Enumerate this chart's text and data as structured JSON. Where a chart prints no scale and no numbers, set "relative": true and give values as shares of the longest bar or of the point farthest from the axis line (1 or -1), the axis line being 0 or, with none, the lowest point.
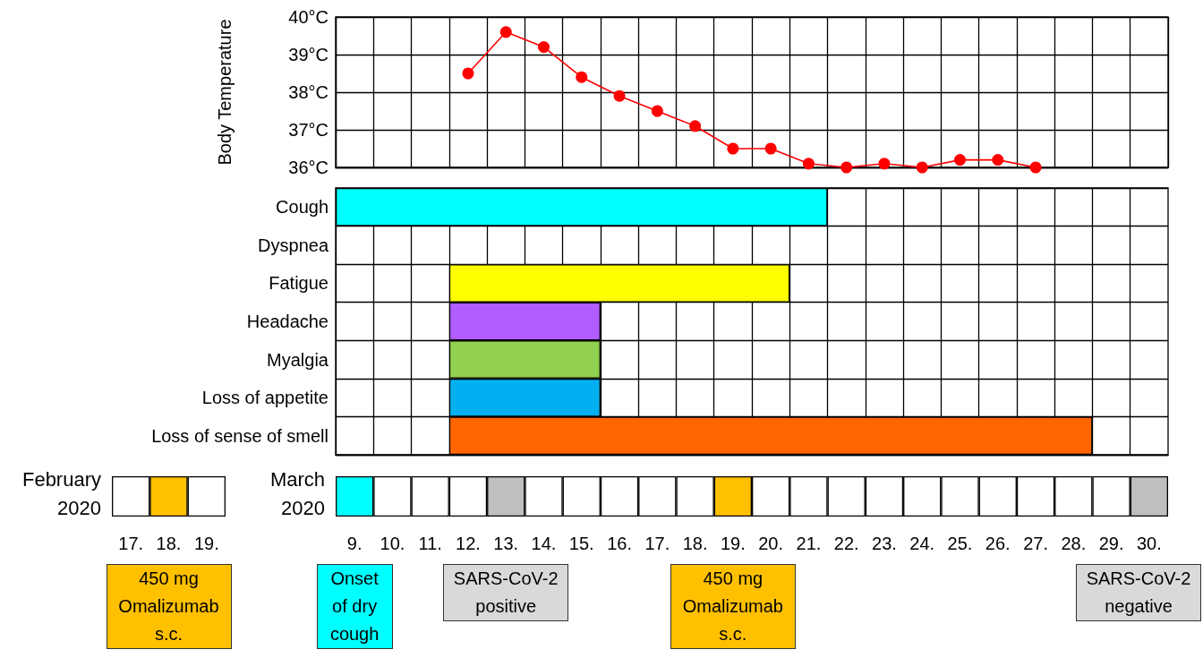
{
  "chart_data": [
    {
      "type": "line",
      "ylabel": "Body Temperature",
      "categories": [
        "9.",
        "10.",
        "11.",
        "12.",
        "13.",
        "14.",
        "15.",
        "16.",
        "17.",
        "18.",
        "19.",
        "20.",
        "21.",
        "22.",
        "23.",
        "24.",
        "25.",
        "26.",
        "27.",
        "28.",
        "29.",
        "30."
      ],
      "series": [
        {
          "color": "#ff0000",
          "values": [
            null,
            null,
            null,
            38.5,
            39.6,
            39.2,
            38.4,
            37.9,
            37.5,
            37.1,
            36.5,
            36.5,
            36.1,
            36.0,
            36.1,
            36.0,
            36.2,
            36.2,
            36.0,
            null,
            null,
            null
          ]
        }
      ],
      "ylim": [
        36,
        40
      ],
      "yticks": [
        {
          "value": 36,
          "label": "36°C"
        },
        {
          "value": 37,
          "label": "37°C"
        },
        {
          "value": 38,
          "label": "38°C"
        },
        {
          "value": 39,
          "label": "39°C"
        },
        {
          "value": 40,
          "label": "40°C"
        }
      ],
      "grid": true,
      "marker": "circle",
      "line_style": "solid",
      "tick_labels": "y"
    },
    {
      "type": "bar",
      "orientation": "horizontal",
      "categories": [
        "Cough",
        "Dyspnea",
        "Fatigue",
        "Headache",
        "Myalgia",
        "Loss of appetite",
        "Loss of sense of smell"
      ],
      "base": [
        8.5,
        null,
        11.5,
        11.5,
        11.5,
        11.5,
        11.5
      ],
      "values": [
        13,
        null,
        9,
        4,
        4,
        4,
        17
      ],
      "colors": [
        "#00ffff",
        "#ffffff",
        "#ffff00",
        "#b05cff",
        "#92d050",
        "#00b0f0",
        "#ff6600"
      ],
      "xlim": [
        8.5,
        30.5
      ],
      "xticks": [
        9,
        10,
        11,
        12,
        13,
        14,
        15,
        16,
        17,
        18,
        19,
        20,
        21,
        22,
        23,
        24,
        25,
        26,
        27,
        28,
        29,
        30
      ],
      "grid": true,
      "tick_labels": "y"
    },
    {
      "type": "bar",
      "relative": true,
      "title": "February 2020",
      "categories": [
        "17.",
        "18.",
        "19."
      ],
      "values": [
        1,
        1,
        1
      ],
      "colors": [
        "#ffffff",
        "#ffc000",
        "#ffffff"
      ],
      "annotations": [
        "450 mg Omalizumab s.c."
      ]
    },
    {
      "type": "bar",
      "relative": true,
      "title": "March 2020",
      "categories": [
        "9.",
        "10.",
        "11.",
        "12.",
        "13.",
        "14.",
        "15.",
        "16.",
        "17.",
        "18.",
        "19.",
        "20.",
        "21.",
        "22.",
        "23.",
        "24.",
        "25.",
        "26.",
        "27.",
        "28.",
        "29.",
        "30."
      ],
      "values": [
        1,
        1,
        1,
        1,
        1,
        1,
        1,
        1,
        1,
        1,
        1,
        1,
        1,
        1,
        1,
        1,
        1,
        1,
        1,
        1,
        1,
        1
      ],
      "colors": [
        "#00ffff",
        "#ffffff",
        "#ffffff",
        "#ffffff",
        "#bfbfbf",
        "#ffffff",
        "#ffffff",
        "#ffffff",
        "#ffffff",
        "#ffffff",
        "#ffc000",
        "#ffffff",
        "#ffffff",
        "#ffffff",
        "#ffffff",
        "#ffffff",
        "#ffffff",
        "#ffffff",
        "#ffffff",
        "#ffffff",
        "#ffffff",
        "#bfbfbf"
      ],
      "annotations": [
        "Onset of dry cough",
        "SARS-CoV-2 positive",
        "450 mg Omalizumab s.c.",
        "SARS-CoV-2 negative"
      ]
    }
  ]
}
